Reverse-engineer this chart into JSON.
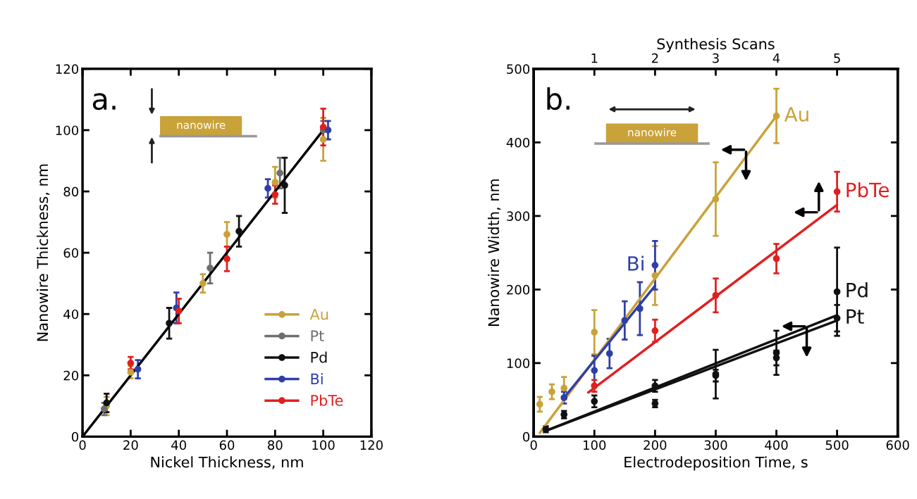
{
  "chart_data": [
    {
      "type": "scatter",
      "xlabel": "Nickel Thickness, nm",
      "ylabel": "Nanowire Thickness, nm",
      "xlim": [
        0,
        120
      ],
      "ylim": [
        0,
        120
      ],
      "xticks": [
        0,
        20,
        40,
        60,
        80,
        100,
        120
      ],
      "yticks": [
        0,
        20,
        40,
        60,
        80,
        100,
        120
      ],
      "marker": "circle",
      "grid": false,
      "legend": "bottom right",
      "annotations": [
        "a.",
        "nanowire"
      ],
      "series": [
        {
          "name": "Au",
          "color": "#c9a23a",
          "x": [
            10,
            20,
            50,
            60,
            80,
            100
          ],
          "values": [
            10,
            21,
            50,
            66,
            83,
            97
          ],
          "errors": [
            3,
            2,
            3,
            4,
            5,
            7
          ]
        },
        {
          "name": "Pt",
          "color": "#6e6e6e",
          "x": [
            9,
            53,
            82,
            100
          ],
          "values": [
            9,
            55,
            86,
            100
          ],
          "errors": [
            2,
            5,
            5,
            3
          ]
        },
        {
          "name": "Pd",
          "color": "#111111",
          "x": [
            10,
            36,
            65,
            84
          ],
          "values": [
            11,
            37,
            67,
            82
          ],
          "errors": [
            3,
            5,
            5,
            9
          ]
        },
        {
          "name": "Bi",
          "color": "#2f3fa8",
          "x": [
            23,
            39,
            77,
            102
          ],
          "values": [
            22,
            42,
            81,
            100
          ],
          "errors": [
            3,
            5,
            3,
            3
          ]
        },
        {
          "name": "PbTe",
          "color": "#e02020",
          "x": [
            20,
            40,
            60,
            80,
            100
          ],
          "values": [
            24,
            41,
            58,
            79,
            101
          ],
          "errors": [
            2,
            4,
            4,
            3,
            6
          ]
        },
        {
          "type": "line",
          "marker": "none",
          "color": "#000000",
          "x": [
            0,
            100
          ],
          "values": [
            0,
            100
          ]
        }
      ]
    },
    {
      "type": "scatter",
      "xlabel": "Electrodeposition Time, s",
      "ylabel": "Nanowire Width, nm",
      "x2label": "Synthesis Scans",
      "xlim": [
        0,
        600
      ],
      "ylim": [
        0,
        500
      ],
      "xticks": [
        0,
        100,
        200,
        300,
        400,
        500,
        600
      ],
      "yticks": [
        0,
        100,
        200,
        300,
        400,
        500
      ],
      "x2lim": [
        0,
        6
      ],
      "x2ticks": [
        1,
        2,
        3,
        4,
        5
      ],
      "marker": "circle",
      "grid": false,
      "legend": false,
      "annotations": [
        "b.",
        "nanowire"
      ],
      "series": [
        {
          "name": "Au",
          "color": "#c9a23a",
          "x": [
            10,
            30,
            50,
            100,
            200,
            300,
            400
          ],
          "values": [
            44,
            61,
            66,
            142,
            219,
            323,
            436
          ],
          "errors": [
            10,
            10,
            15,
            30,
            40,
            50,
            37
          ]
        },
        {
          "name": "Bi",
          "color": "#2f3fa8",
          "x": [
            50,
            100,
            125,
            150,
            175,
            200
          ],
          "values": [
            53,
            90,
            113,
            158,
            174,
            233
          ],
          "errors": [
            8,
            20,
            20,
            26,
            36,
            33
          ]
        },
        {
          "name": "PbTe",
          "color": "#e02020",
          "x": [
            100,
            200,
            300,
            400,
            500
          ],
          "values": [
            69,
            144,
            192,
            242,
            333
          ],
          "errors": [
            8,
            15,
            23,
            20,
            27
          ]
        },
        {
          "name": "Pd",
          "color": "#111111",
          "x": [
            20,
            50,
            100,
            200,
            300,
            400,
            500
          ],
          "values": [
            10,
            30,
            48,
            69,
            85,
            114,
            197
          ],
          "errors": [
            4,
            5,
            8,
            8,
            33,
            30,
            60
          ]
        },
        {
          "name": "Pt",
          "color": "#111111",
          "x": [
            200,
            300,
            400,
            500
          ],
          "values": [
            45,
            83,
            107,
            161
          ],
          "errors": [
            5,
            8,
            10,
            18
          ]
        },
        {
          "type": "line",
          "marker": "none",
          "color": "#c9a23a",
          "x": [
            10,
            400
          ],
          "values": [
            5,
            436
          ]
        },
        {
          "type": "line",
          "marker": "none",
          "color": "#2f3fa8",
          "x": [
            50,
            200
          ],
          "values": [
            53,
            205
          ]
        },
        {
          "type": "line",
          "marker": "none",
          "color": "#e02020",
          "x": [
            90,
            500
          ],
          "values": [
            60,
            315
          ]
        },
        {
          "type": "line",
          "marker": "none",
          "color": "#111111",
          "x": [
            20,
            500
          ],
          "values": [
            8,
            165
          ]
        },
        {
          "type": "line",
          "marker": "none",
          "color": "#111111",
          "x": [
            20,
            500
          ],
          "values": [
            8,
            158
          ]
        }
      ]
    }
  ]
}
